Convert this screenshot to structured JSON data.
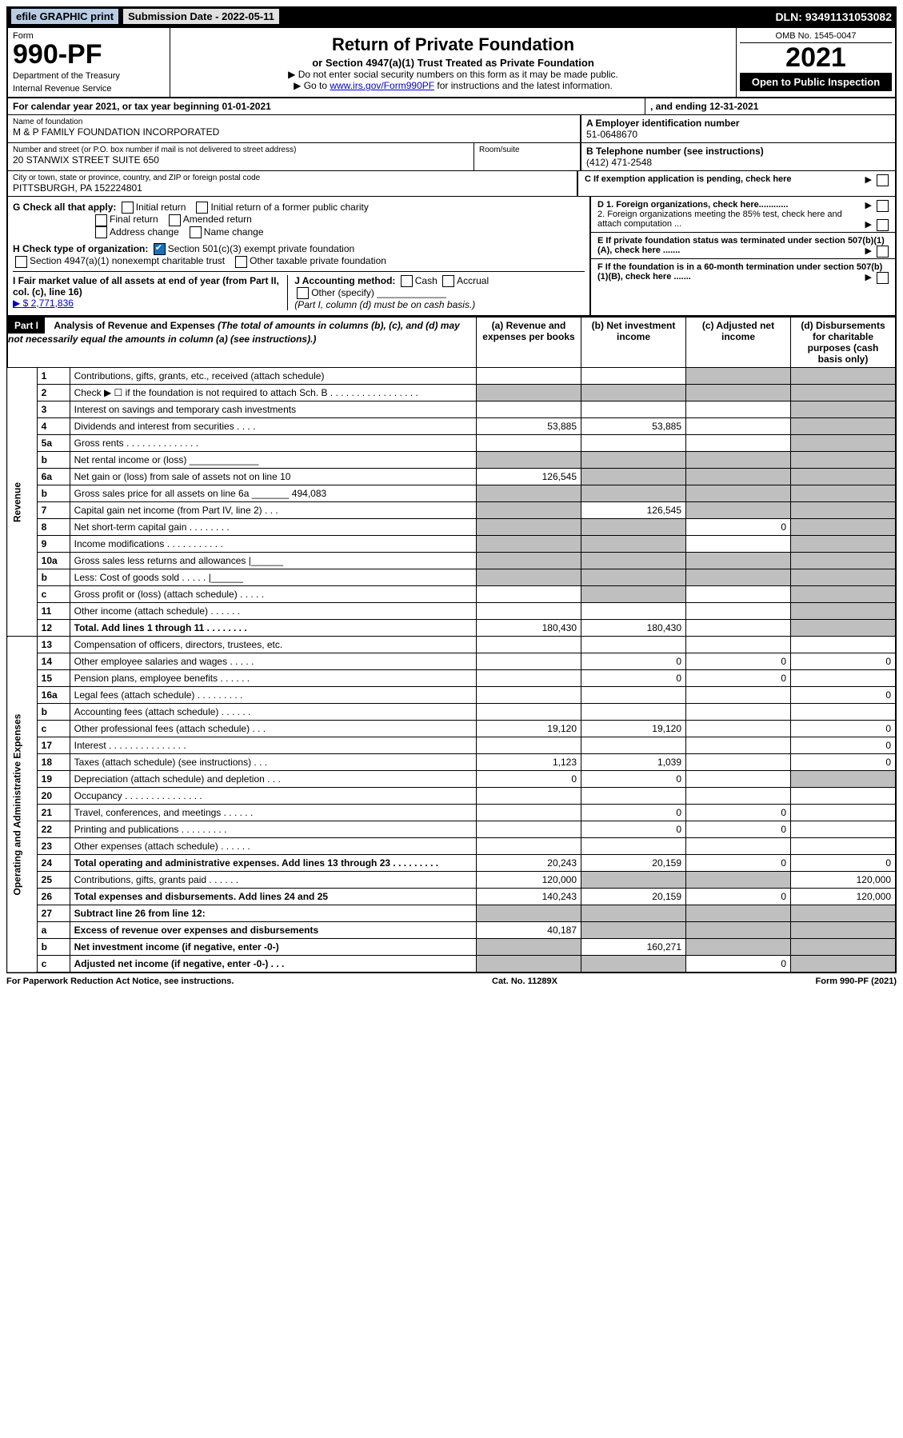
{
  "top_bar": {
    "efile": "efile GRAPHIC print",
    "submission_label": "Submission Date - 2022-05-11",
    "dln": "DLN: 93491131053082"
  },
  "header": {
    "form_label": "Form",
    "form_number": "990-PF",
    "dept1": "Department of the Treasury",
    "dept2": "Internal Revenue Service",
    "title": "Return of Private Foundation",
    "subtitle": "or Section 4947(a)(1) Trust Treated as Private Foundation",
    "note1": "▶ Do not enter social security numbers on this form as it may be made public.",
    "note2_pre": "▶ Go to ",
    "note2_link": "www.irs.gov/Form990PF",
    "note2_post": " for instructions and the latest information.",
    "omb": "OMB No. 1545-0047",
    "year": "2021",
    "open": "Open to Public Inspection"
  },
  "calendar": {
    "line": "For calendar year 2021, or tax year beginning 01-01-2021",
    "ending": ", and ending 12-31-2021"
  },
  "identity": {
    "name_label": "Name of foundation",
    "name": "M & P FAMILY FOUNDATION INCORPORATED",
    "addr_label": "Number and street (or P.O. box number if mail is not delivered to street address)",
    "addr": "20 STANWIX STREET SUITE 650",
    "room_label": "Room/suite",
    "city_label": "City or town, state or province, country, and ZIP or foreign postal code",
    "city": "PITTSBURGH, PA  152224801",
    "a_label": "A Employer identification number",
    "a_val": "51-0648670",
    "b_label": "B Telephone number (see instructions)",
    "b_val": "(412) 471-2548",
    "c_label": "C If exemption application is pending, check here"
  },
  "checks": {
    "g_label": "G Check all that apply:",
    "g_opts": [
      "Initial return",
      "Initial return of a former public charity",
      "Final return",
      "Amended return",
      "Address change",
      "Name change"
    ],
    "h_label": "H Check type of organization:",
    "h_opt1": "Section 501(c)(3) exempt private foundation",
    "h_opt2": "Section 4947(a)(1) nonexempt charitable trust",
    "h_opt3": "Other taxable private foundation",
    "i_label": "I Fair market value of all assets at end of year (from Part II, col. (c), line 16)",
    "i_val": "▶ $  2,771,836",
    "j_label": "J Accounting method:",
    "j_opts": [
      "Cash",
      "Accrual",
      "Other (specify)"
    ],
    "j_note": "(Part I, column (d) must be on cash basis.)",
    "d1": "D 1. Foreign organizations, check here............",
    "d2": "2. Foreign organizations meeting the 85% test, check here and attach computation ...",
    "e": "E  If private foundation status was terminated under section 507(b)(1)(A), check here .......",
    "f": "F  If the foundation is in a 60-month termination under section 507(b)(1)(B), check here ......."
  },
  "part1": {
    "label": "Part I",
    "title": "Analysis of Revenue and Expenses",
    "title_note": "(The total of amounts in columns (b), (c), and (d) may not necessarily equal the amounts in column (a) (see instructions).)",
    "col_a": "(a)  Revenue and expenses per books",
    "col_b": "(b)  Net investment income",
    "col_c": "(c)  Adjusted net income",
    "col_d": "(d)  Disbursements for charitable purposes (cash basis only)",
    "vert_revenue": "Revenue",
    "vert_expenses": "Operating and Administrative Expenses"
  },
  "rows": [
    {
      "n": "1",
      "d": "Contributions, gifts, grants, etc., received (attach schedule)",
      "a": "",
      "b": "",
      "c": "shade",
      "dcol": "shade"
    },
    {
      "n": "2",
      "d": "Check ▶ ☐ if the foundation is not required to attach Sch. B  . . . . . . . . . . . . . . . . .",
      "a": "shade",
      "b": "shade",
      "c": "shade",
      "dcol": "shade"
    },
    {
      "n": "3",
      "d": "Interest on savings and temporary cash investments",
      "a": "",
      "b": "",
      "c": "",
      "dcol": "shade"
    },
    {
      "n": "4",
      "d": "Dividends and interest from securities  . . . .",
      "a": "53,885",
      "b": "53,885",
      "c": "",
      "dcol": "shade"
    },
    {
      "n": "5a",
      "d": "Gross rents  . . . . . . . . . . . . . .",
      "a": "",
      "b": "",
      "c": "",
      "dcol": "shade"
    },
    {
      "n": "b",
      "d": "Net rental income or (loss)  _____________",
      "a": "shade",
      "b": "shade",
      "c": "shade",
      "dcol": "shade"
    },
    {
      "n": "6a",
      "d": "Net gain or (loss) from sale of assets not on line 10",
      "a": "126,545",
      "b": "shade",
      "c": "shade",
      "dcol": "shade"
    },
    {
      "n": "b",
      "d": "Gross sales price for all assets on line 6a _______ 494,083",
      "a": "shade",
      "b": "shade",
      "c": "shade",
      "dcol": "shade"
    },
    {
      "n": "7",
      "d": "Capital gain net income (from Part IV, line 2)  . . .",
      "a": "shade",
      "b": "126,545",
      "c": "shade",
      "dcol": "shade"
    },
    {
      "n": "8",
      "d": "Net short-term capital gain  . . . . . . . .",
      "a": "shade",
      "b": "shade",
      "c": "0",
      "dcol": "shade"
    },
    {
      "n": "9",
      "d": "Income modifications . . . . . . . . . . .",
      "a": "shade",
      "b": "shade",
      "c": "",
      "dcol": "shade"
    },
    {
      "n": "10a",
      "d": "Gross sales less returns and allowances  |______",
      "a": "shade",
      "b": "shade",
      "c": "shade",
      "dcol": "shade"
    },
    {
      "n": "b",
      "d": "Less: Cost of goods sold  . . . . . |______",
      "a": "shade",
      "b": "shade",
      "c": "shade",
      "dcol": "shade"
    },
    {
      "n": "c",
      "d": "Gross profit or (loss) (attach schedule)  . . . . .",
      "a": "",
      "b": "shade",
      "c": "",
      "dcol": "shade"
    },
    {
      "n": "11",
      "d": "Other income (attach schedule)  . . . . . .",
      "a": "",
      "b": "",
      "c": "",
      "dcol": "shade"
    },
    {
      "n": "12",
      "d": "Total. Add lines 1 through 11  . . . . . . . .",
      "a": "180,430",
      "b": "180,430",
      "c": "",
      "dcol": "shade",
      "bold": true
    },
    {
      "n": "13",
      "d": "Compensation of officers, directors, trustees, etc.",
      "a": "",
      "b": "",
      "c": "",
      "dcol": ""
    },
    {
      "n": "14",
      "d": "Other employee salaries and wages  . . . . .",
      "a": "",
      "b": "0",
      "c": "0",
      "dcol": "0"
    },
    {
      "n": "15",
      "d": "Pension plans, employee benefits  . . . . . .",
      "a": "",
      "b": "0",
      "c": "0",
      "dcol": ""
    },
    {
      "n": "16a",
      "d": "Legal fees (attach schedule) . . . . . . . . .",
      "a": "",
      "b": "",
      "c": "",
      "dcol": "0"
    },
    {
      "n": "b",
      "d": "Accounting fees (attach schedule)  . . . . . .",
      "a": "",
      "b": "",
      "c": "",
      "dcol": ""
    },
    {
      "n": "c",
      "d": "Other professional fees (attach schedule)   . . .",
      "a": "19,120",
      "b": "19,120",
      "c": "",
      "dcol": "0"
    },
    {
      "n": "17",
      "d": "Interest  . . . . . . . . . . . . . . .",
      "a": "",
      "b": "",
      "c": "",
      "dcol": "0"
    },
    {
      "n": "18",
      "d": "Taxes (attach schedule) (see instructions)  . . .",
      "a": "1,123",
      "b": "1,039",
      "c": "",
      "dcol": "0"
    },
    {
      "n": "19",
      "d": "Depreciation (attach schedule) and depletion  . . .",
      "a": "0",
      "b": "0",
      "c": "",
      "dcol": "shade"
    },
    {
      "n": "20",
      "d": "Occupancy . . . . . . . . . . . . . . .",
      "a": "",
      "b": "",
      "c": "",
      "dcol": ""
    },
    {
      "n": "21",
      "d": "Travel, conferences, and meetings . . . . . .",
      "a": "",
      "b": "0",
      "c": "0",
      "dcol": ""
    },
    {
      "n": "22",
      "d": "Printing and publications . . . . . . . . .",
      "a": "",
      "b": "0",
      "c": "0",
      "dcol": ""
    },
    {
      "n": "23",
      "d": "Other expenses (attach schedule)  . . . . . .",
      "a": "",
      "b": "",
      "c": "",
      "dcol": ""
    },
    {
      "n": "24",
      "d": "Total operating and administrative expenses. Add lines 13 through 23  . . . . . . . . .",
      "a": "20,243",
      "b": "20,159",
      "c": "0",
      "dcol": "0",
      "bold": true
    },
    {
      "n": "25",
      "d": "Contributions, gifts, grants paid  . . . . . .",
      "a": "120,000",
      "b": "shade",
      "c": "shade",
      "dcol": "120,000"
    },
    {
      "n": "26",
      "d": "Total expenses and disbursements. Add lines 24 and 25",
      "a": "140,243",
      "b": "20,159",
      "c": "0",
      "dcol": "120,000",
      "bold": true
    },
    {
      "n": "27",
      "d": "Subtract line 26 from line 12:",
      "a": "shade",
      "b": "shade",
      "c": "shade",
      "dcol": "shade",
      "bold": true
    },
    {
      "n": "a",
      "d": "Excess of revenue over expenses and disbursements",
      "a": "40,187",
      "b": "shade",
      "c": "shade",
      "dcol": "shade",
      "bold": true
    },
    {
      "n": "b",
      "d": "Net investment income (if negative, enter -0-)",
      "a": "shade",
      "b": "160,271",
      "c": "shade",
      "dcol": "shade",
      "bold": true
    },
    {
      "n": "c",
      "d": "Adjusted net income (if negative, enter -0-)  . . .",
      "a": "shade",
      "b": "shade",
      "c": "0",
      "dcol": "shade",
      "bold": true
    }
  ],
  "footer": {
    "left": "For Paperwork Reduction Act Notice, see instructions.",
    "mid": "Cat. No. 11289X",
    "right": "Form 990-PF (2021)"
  }
}
